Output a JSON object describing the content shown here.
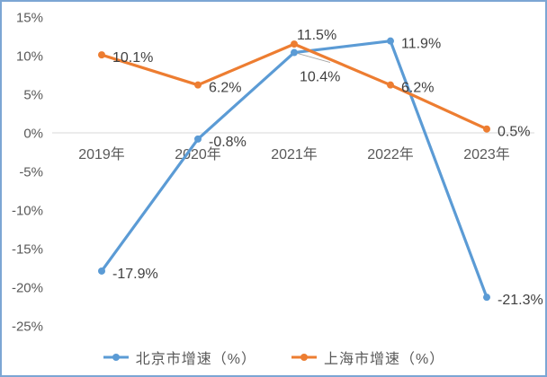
{
  "frame": {
    "border_color": "#7CA6D4",
    "background": "#FFFFFF"
  },
  "chart_data": {
    "type": "line",
    "title": "",
    "xlabel": "",
    "ylabel": "",
    "categories": [
      "2019年",
      "2020年",
      "2021年",
      "2022年",
      "2023年"
    ],
    "series": [
      {
        "name": "北京市增速（%）",
        "color": "#5B9BD5",
        "values": [
          -17.9,
          -0.8,
          10.4,
          11.9,
          -21.3
        ],
        "data_labels": [
          "-17.9%",
          "-0.8%",
          "10.4%",
          "11.9%",
          "-21.3%"
        ]
      },
      {
        "name": "上海市增速（%）",
        "color": "#ED7D31",
        "values": [
          10.1,
          6.2,
          11.5,
          6.2,
          0.5
        ],
        "data_labels": [
          "10.1%",
          "6.2%",
          "11.5%",
          "6.2%",
          "0.5%"
        ]
      }
    ],
    "yticks": {
      "labels": [
        "15%",
        "10%",
        "5%",
        "0%",
        "-5%",
        "-10%",
        "-15%",
        "-20%",
        "-25%"
      ],
      "values": [
        15,
        10,
        5,
        0,
        -5,
        -10,
        -15,
        -20,
        -25
      ]
    },
    "ylim": [
      -25,
      15
    ],
    "grid": "zero-axis-line-only",
    "legend_position": "bottom-center",
    "axis_line_color": "#D9D9D9",
    "leader_line_color": "#A6A6A6",
    "tick_label_color": "#595959",
    "data_label_color": "#404040",
    "annotations": {
      "moved_label_note": "10.4% label of 北京市增速 at 2021年 is offset below its point with a thin gray leader line"
    }
  }
}
